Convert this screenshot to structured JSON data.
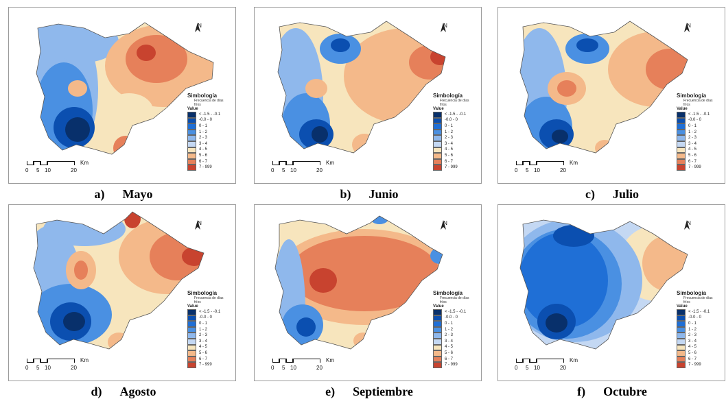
{
  "panels": [
    {
      "letter": "a)",
      "month": "Mayo",
      "scheme": "mayo"
    },
    {
      "letter": "b)",
      "month": "Junio",
      "scheme": "junio"
    },
    {
      "letter": "c)",
      "month": "Julio",
      "scheme": "julio"
    },
    {
      "letter": "d)",
      "month": "Agosto",
      "scheme": "agosto"
    },
    {
      "letter": "e)",
      "month": "Septiembre",
      "scheme": "septiembre"
    },
    {
      "letter": "f)",
      "month": "Octubre",
      "scheme": "octubre"
    }
  ],
  "legend": {
    "title": "Simbología",
    "subtitle": "Frecuencia de días fríos",
    "value_label": "Value",
    "classes": [
      {
        "label": "< -1.5 - -0.1",
        "color": "#08306b"
      },
      {
        "label": "-0.0 - 0",
        "color": "#0b4fb0"
      },
      {
        "label": "0 - 1",
        "color": "#1f6fd6"
      },
      {
        "label": "1 - 2",
        "color": "#4a90e2"
      },
      {
        "label": "2 - 3",
        "color": "#8fb8ec"
      },
      {
        "label": "3 - 4",
        "color": "#c4d8f3"
      },
      {
        "label": "4 - 5",
        "color": "#f7e5bd"
      },
      {
        "label": "5 - 6",
        "color": "#f4b98a"
      },
      {
        "label": "6 - 7",
        "color": "#e6805a"
      },
      {
        "label": "7 - 999",
        "color": "#c8432f"
      }
    ]
  },
  "scale": {
    "ticks": [
      "0",
      "5",
      "10",
      "20"
    ],
    "unit": "Km"
  },
  "north_label": "N"
}
